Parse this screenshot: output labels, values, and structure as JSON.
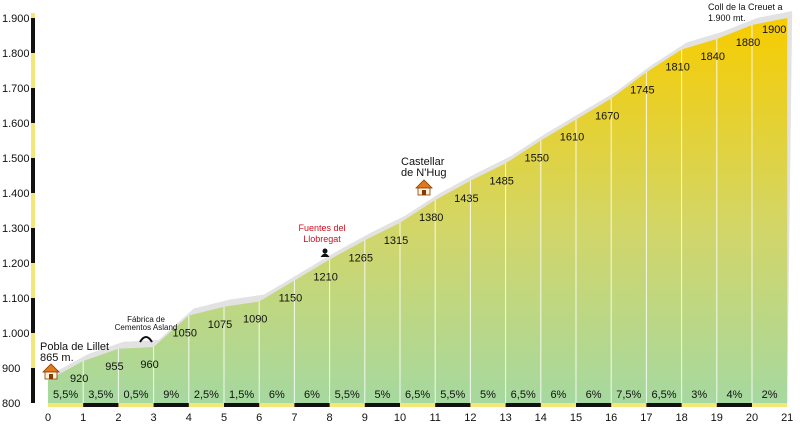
{
  "chart_data": {
    "type": "area",
    "x": [
      0,
      1,
      2,
      3,
      4,
      5,
      6,
      7,
      8,
      9,
      10,
      11,
      12,
      13,
      14,
      15,
      16,
      17,
      18,
      19,
      20,
      21
    ],
    "x_ticks": [
      "0",
      "1",
      "2",
      "3",
      "4",
      "5",
      "6",
      "7",
      "8",
      "9",
      "10",
      "11",
      "12",
      "13",
      "14",
      "15",
      "16",
      "17",
      "18",
      "19",
      "20",
      "21"
    ],
    "elevations": [
      865,
      920,
      955,
      960,
      1050,
      1075,
      1090,
      1150,
      1210,
      1265,
      1315,
      1380,
      1435,
      1485,
      1550,
      1610,
      1670,
      1745,
      1810,
      1840,
      1880,
      1900
    ],
    "elevation_labels": [
      "920",
      "955",
      "960",
      "1050",
      "1075",
      "1090",
      "1150",
      "1210",
      "1265",
      "1315",
      "1380",
      "1435",
      "1485",
      "1550",
      "1610",
      "1670",
      "1745",
      "1810",
      "1840",
      "1880",
      "1900"
    ],
    "gradients": [
      "5,5%",
      "3,5%",
      "0,5%",
      "9%",
      "2,5%",
      "1,5%",
      "6%",
      "6%",
      "5,5%",
      "5%",
      "6,5%",
      "5,5%",
      "5%",
      "6,5%",
      "6%",
      "6%",
      "7,5%",
      "6,5%",
      "3%",
      "4%",
      "2%"
    ],
    "y_ticks": [
      "800",
      "900",
      "1.000",
      "1.100",
      "1.200",
      "1.300",
      "1.400",
      "1.500",
      "1.600",
      "1.700",
      "1.800",
      "1.900"
    ],
    "ylim": [
      800,
      1900
    ],
    "xlim": [
      0,
      21
    ],
    "colors": {
      "fill_top": "#f7cc00",
      "fill_bottom": "#a6d8a0",
      "shadow": "#e2e2e2",
      "grid": "#ffffff",
      "axis": "#111111",
      "accent": "#cc1122",
      "axis_band": "#f2e87a"
    },
    "annotations": {
      "start": {
        "line1": "Pobla de Lillet",
        "line2": "865 m."
      },
      "factory": {
        "line1": "Fábrica de",
        "line2": "Cementos Asland"
      },
      "springs": {
        "line1": "Fuentes  del",
        "line2": "Llobregat"
      },
      "village": {
        "line1": "Castellar",
        "line2": "de N'Hug"
      },
      "summit": {
        "line1": "Coll  de la Creuet a",
        "line2": "1.900  mt."
      }
    }
  }
}
